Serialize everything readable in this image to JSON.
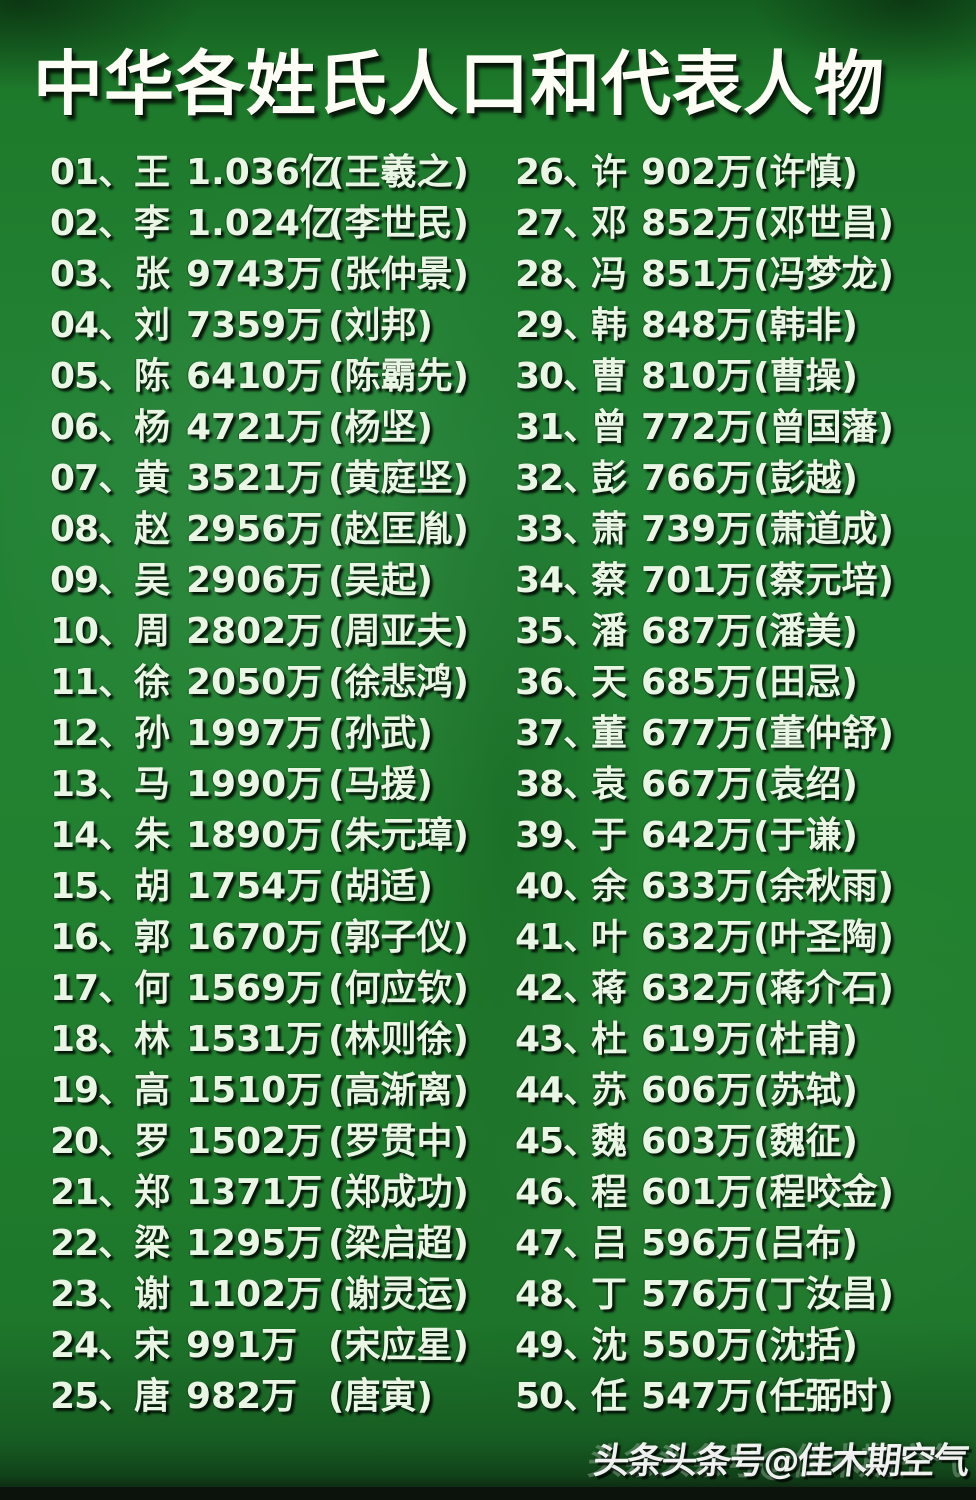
{
  "title": "中华各姓氏人口和代表人物",
  "watermark": "头条头条号@佳木期空气",
  "colors": {
    "background_green": "#21812f",
    "dark_band": "#0b130c",
    "row_text": "#e9f6e4",
    "title_text": "#fcfdf4"
  },
  "list": {
    "left": [
      {
        "rank": "01、",
        "surname": "王",
        "population": "1.036亿",
        "person": "(王羲之)"
      },
      {
        "rank": "02、",
        "surname": "李",
        "population": "1.024亿",
        "person": "(李世民)"
      },
      {
        "rank": "03、",
        "surname": "张",
        "population": "9743万",
        "person": "(张仲景)"
      },
      {
        "rank": "04、",
        "surname": "刘",
        "population": "7359万",
        "person": "(刘邦)"
      },
      {
        "rank": "05、",
        "surname": "陈",
        "population": "6410万",
        "person": "(陈霸先)"
      },
      {
        "rank": "06、",
        "surname": "杨",
        "population": "4721万",
        "person": "(杨坚)"
      },
      {
        "rank": "07、",
        "surname": "黄",
        "population": "3521万",
        "person": "(黄庭坚)"
      },
      {
        "rank": "08、",
        "surname": "赵",
        "population": "2956万",
        "person": "(赵匡胤)"
      },
      {
        "rank": "09、",
        "surname": "吴",
        "population": "2906万",
        "person": "(吴起)"
      },
      {
        "rank": "10、",
        "surname": "周",
        "population": "2802万",
        "person": "(周亚夫)"
      },
      {
        "rank": "11、",
        "surname": "徐",
        "population": "2050万",
        "person": "(徐悲鸿)"
      },
      {
        "rank": "12、",
        "surname": "孙",
        "population": "1997万",
        "person": "(孙武)"
      },
      {
        "rank": "13、",
        "surname": "马",
        "population": "1990万",
        "person": "(马援)"
      },
      {
        "rank": "14、",
        "surname": "朱",
        "population": "1890万",
        "person": "(朱元璋)"
      },
      {
        "rank": "15、",
        "surname": "胡",
        "population": "1754万",
        "person": "(胡适)"
      },
      {
        "rank": "16、",
        "surname": "郭",
        "population": "1670万",
        "person": "(郭子仪)"
      },
      {
        "rank": "17、",
        "surname": "何",
        "population": "1569万",
        "person": "(何应钦)"
      },
      {
        "rank": "18、",
        "surname": "林",
        "population": "1531万",
        "person": "(林则徐)"
      },
      {
        "rank": "19、",
        "surname": "高",
        "population": "1510万",
        "person": "(高渐离)"
      },
      {
        "rank": "20、",
        "surname": "罗",
        "population": "1502万",
        "person": "(罗贯中)"
      },
      {
        "rank": "21、",
        "surname": "郑",
        "population": "1371万",
        "person": "(郑成功)"
      },
      {
        "rank": "22、",
        "surname": "梁",
        "population": "1295万",
        "person": "(梁启超)"
      },
      {
        "rank": "23、",
        "surname": "谢",
        "population": "1102万",
        "person": "(谢灵运)"
      },
      {
        "rank": "24、",
        "surname": "宋",
        "population": "991万",
        "person": "(宋应星)"
      },
      {
        "rank": "25、",
        "surname": "唐",
        "population": "982万",
        "person": "(唐寅)"
      }
    ],
    "right": [
      {
        "rank": "26、",
        "surname": "许",
        "population": "902万",
        "person": "(许慎)"
      },
      {
        "rank": "27、",
        "surname": "邓",
        "population": "852万",
        "person": "(邓世昌)"
      },
      {
        "rank": "28、",
        "surname": "冯",
        "population": "851万",
        "person": "(冯梦龙)"
      },
      {
        "rank": "29、",
        "surname": "韩",
        "population": "848万",
        "person": "(韩非)"
      },
      {
        "rank": "30、",
        "surname": "曹",
        "population": "810万",
        "person": "(曹操)"
      },
      {
        "rank": "31、",
        "surname": "曾",
        "population": "772万",
        "person": "(曾国藩)"
      },
      {
        "rank": "32、",
        "surname": "彭",
        "population": "766万",
        "person": "(彭越)"
      },
      {
        "rank": "33、",
        "surname": "萧",
        "population": "739万",
        "person": "(萧道成)"
      },
      {
        "rank": "34、",
        "surname": "蔡",
        "population": "701万",
        "person": "(蔡元培)"
      },
      {
        "rank": "35、",
        "surname": "潘",
        "population": "687万",
        "person": "(潘美)"
      },
      {
        "rank": "36、",
        "surname": "天",
        "population": "685万",
        "person": "(田忌)"
      },
      {
        "rank": "37、",
        "surname": "董",
        "population": "677万",
        "person": "(董仲舒)"
      },
      {
        "rank": "38、",
        "surname": "袁",
        "population": "667万",
        "person": "(袁绍)"
      },
      {
        "rank": "39、",
        "surname": "于",
        "population": "642万",
        "person": "(于谦)"
      },
      {
        "rank": "40、",
        "surname": "余",
        "population": "633万",
        "person": "(余秋雨)"
      },
      {
        "rank": "41、",
        "surname": "叶",
        "population": "632万",
        "person": "(叶圣陶)"
      },
      {
        "rank": "42、",
        "surname": "蒋",
        "population": "632万",
        "person": "(蒋介石)"
      },
      {
        "rank": "43、",
        "surname": "杜",
        "population": "619万",
        "person": "(杜甫)"
      },
      {
        "rank": "44、",
        "surname": "苏",
        "population": "606万",
        "person": "(苏轼)"
      },
      {
        "rank": "45、",
        "surname": "魏",
        "population": "603万",
        "person": "(魏征)"
      },
      {
        "rank": "46、",
        "surname": "程",
        "population": "601万",
        "person": "(程咬金)"
      },
      {
        "rank": "47、",
        "surname": "吕",
        "population": "596万",
        "person": "(吕布)"
      },
      {
        "rank": "48、",
        "surname": "丁",
        "population": "576万",
        "person": "(丁汝昌)"
      },
      {
        "rank": "49、",
        "surname": "沈",
        "population": "550万",
        "person": "(沈括)"
      },
      {
        "rank": "50、",
        "surname": "任",
        "population": "547万",
        "person": "(任弼时)"
      }
    ]
  }
}
